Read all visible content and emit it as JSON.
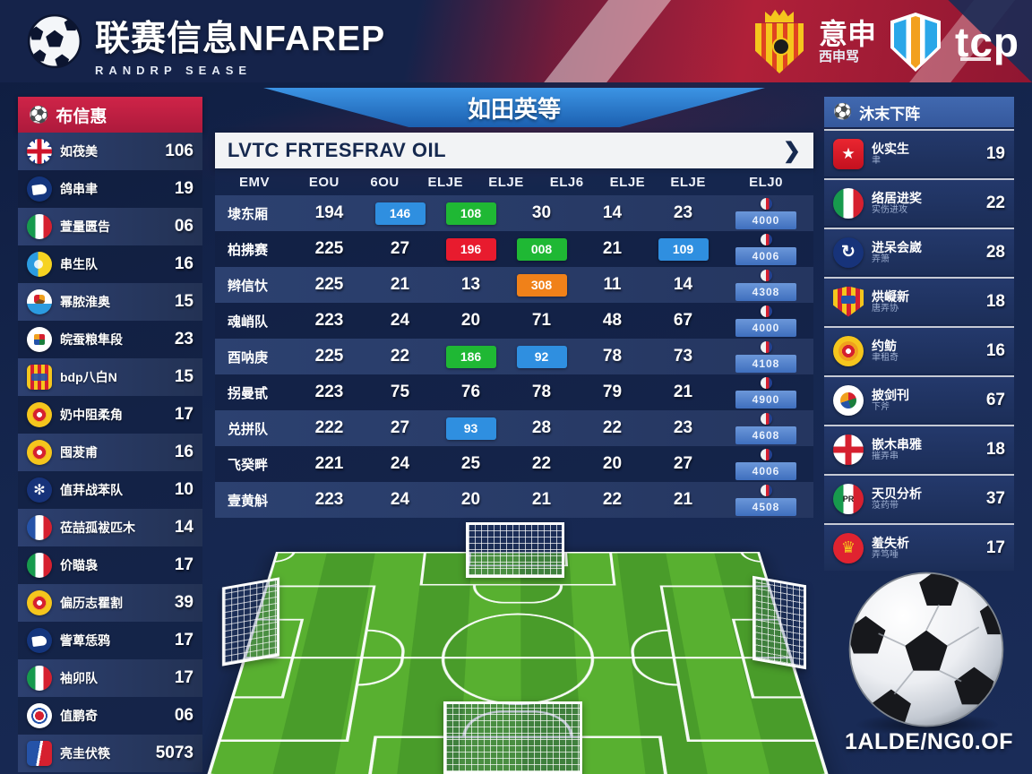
{
  "header": {
    "title": "联赛信息NFAREP",
    "subtitle": "RANDRP SEASE",
    "badge1": {
      "label": "意申",
      "sublabel": "西申骂"
    },
    "badge2": {
      "label": "tcp"
    }
  },
  "left_sidebar": {
    "title": "布信惠",
    "items": [
      {
        "icon": "uk",
        "name": "如茷美",
        "value": "106"
      },
      {
        "icon": "navybird",
        "name": "鸽串聿",
        "value": "19"
      },
      {
        "icon": "italy",
        "name": "萱量匮告",
        "value": "06"
      },
      {
        "icon": "blueyellow",
        "name": "串生队",
        "value": "16"
      },
      {
        "icon": "whiteblue",
        "name": "幂脓淮奥",
        "value": "15"
      },
      {
        "icon": "whitecrest",
        "name": "皖蚕粮隼段",
        "value": "23"
      },
      {
        "icon": "stripes",
        "name": "bdp八白N",
        "value": "15"
      },
      {
        "icon": "yellowcrest",
        "name": "奶中阻柔角",
        "value": "17"
      },
      {
        "icon": "yellowcrest",
        "name": "囤茇甫",
        "value": "16"
      },
      {
        "icon": "bluegear",
        "name": "值荓战苯队",
        "value": "10"
      },
      {
        "icon": "france",
        "name": "莅喆孤袚匹木",
        "value": "14"
      },
      {
        "icon": "italy",
        "name": "价瞄袅",
        "value": "17"
      },
      {
        "icon": "yellowcrest",
        "name": "偏历志瞿割",
        "value": "39"
      },
      {
        "icon": "navybird",
        "name": "訾萆恁鸦",
        "value": "17"
      },
      {
        "icon": "italy",
        "name": "袖卯队",
        "value": "17"
      },
      {
        "icon": "redwhiteblue",
        "name": "值鹏奇",
        "value": "06"
      },
      {
        "icon": "bluered",
        "name": "亮圭伏筷",
        "value": "5073"
      }
    ]
  },
  "center": {
    "banner": "如田英等",
    "bar_title": "LVTC FRTESFRAV OIL",
    "chevron": "❯",
    "table": {
      "columns": [
        "EMV",
        "EOU",
        "6OU",
        "ELJE",
        "ELJE",
        "ELJ6",
        "ELJE",
        "ELJE",
        "ELJ0"
      ],
      "rows": [
        {
          "name": "埭东厢",
          "cells": [
            {
              "v": "194"
            },
            {
              "v": "146",
              "bg": "blue"
            },
            {
              "v": "108",
              "bg": "green"
            },
            {
              "v": "30"
            },
            {
              "v": "14"
            },
            {
              "v": "23"
            }
          ],
          "action": "4000"
        },
        {
          "name": "柏拂赛",
          "cells": [
            {
              "v": "225"
            },
            {
              "v": "27"
            },
            {
              "v": "196",
              "bg": "red"
            },
            {
              "v": "008",
              "bg": "green"
            },
            {
              "v": "21"
            },
            {
              "v": "109",
              "bg": "blue"
            }
          ],
          "action": "4006"
        },
        {
          "name": "辫信忕",
          "cells": [
            {
              "v": "225"
            },
            {
              "v": "21"
            },
            {
              "v": "13"
            },
            {
              "v": "308",
              "bg": "orange"
            },
            {
              "v": "11"
            },
            {
              "v": "14"
            }
          ],
          "action": "4308"
        },
        {
          "name": "魂峭队",
          "cells": [
            {
              "v": "223"
            },
            {
              "v": "24"
            },
            {
              "v": "20"
            },
            {
              "v": "71"
            },
            {
              "v": "48"
            },
            {
              "v": "67"
            }
          ],
          "action": "4000"
        },
        {
          "name": "酉呐庚",
          "cells": [
            {
              "v": "225"
            },
            {
              "v": "22"
            },
            {
              "v": "186",
              "bg": "green"
            },
            {
              "v": "92",
              "bg": "blue"
            },
            {
              "v": "78"
            },
            {
              "v": "73"
            }
          ],
          "action": "4108"
        },
        {
          "name": "拐曼甙",
          "cells": [
            {
              "v": "223"
            },
            {
              "v": "75"
            },
            {
              "v": "76"
            },
            {
              "v": "78"
            },
            {
              "v": "79"
            },
            {
              "v": "21"
            }
          ],
          "action": "4900"
        },
        {
          "name": "兑拼队",
          "cells": [
            {
              "v": "222"
            },
            {
              "v": "27"
            },
            {
              "v": "93",
              "bg": "blue"
            },
            {
              "v": "28"
            },
            {
              "v": "22"
            },
            {
              "v": "23"
            }
          ],
          "action": "4608"
        },
        {
          "name": "飞癸畔",
          "cells": [
            {
              "v": "221"
            },
            {
              "v": "24"
            },
            {
              "v": "25"
            },
            {
              "v": "22"
            },
            {
              "v": "20"
            },
            {
              "v": "27"
            }
          ],
          "action": "4006"
        },
        {
          "name": "壹黄斛",
          "cells": [
            {
              "v": "223"
            },
            {
              "v": "24"
            },
            {
              "v": "20"
            },
            {
              "v": "21"
            },
            {
              "v": "22"
            },
            {
              "v": "21"
            }
          ],
          "action": "4508"
        }
      ]
    }
  },
  "right_sidebar": {
    "title": "沐末下阵",
    "items": [
      {
        "icon": "star",
        "name": "伙实生",
        "sub": "聿",
        "value": "19"
      },
      {
        "icon": "italy",
        "name": "络居进奖",
        "sub": "实伤进攻",
        "value": "22"
      },
      {
        "icon": "arrows",
        "name": "进呆会崴",
        "sub": "弄箫",
        "value": "28"
      },
      {
        "icon": "crest2",
        "name": "烘㠜新",
        "sub": "唐弄协",
        "value": "18"
      },
      {
        "icon": "yellowcrest",
        "name": "约鲂",
        "sub": "聿租奇",
        "value": "16"
      },
      {
        "icon": "emblem",
        "name": "披剑刊",
        "sub": "下斧",
        "value": "67"
      },
      {
        "icon": "england",
        "name": "嵌木串雅",
        "sub": "摧弄串",
        "value": "18"
      },
      {
        "icon": "italypr",
        "name": "天贝分析",
        "sub": "莈药带",
        "value": "37"
      },
      {
        "icon": "crown",
        "name": "羞失析",
        "sub": "弄笃唾",
        "value": "17"
      }
    ]
  },
  "footer": {
    "ball_caption": "1ALDE/NG0.OF"
  },
  "colors": {
    "accent_red": "#c32045",
    "accent_blue": "#2f8fe0",
    "badge_green": "#1fb834",
    "badge_orange": "#f08119",
    "badge_red": "#e81b2e",
    "field_green": "#55ad2e",
    "navy": "#16284e"
  }
}
